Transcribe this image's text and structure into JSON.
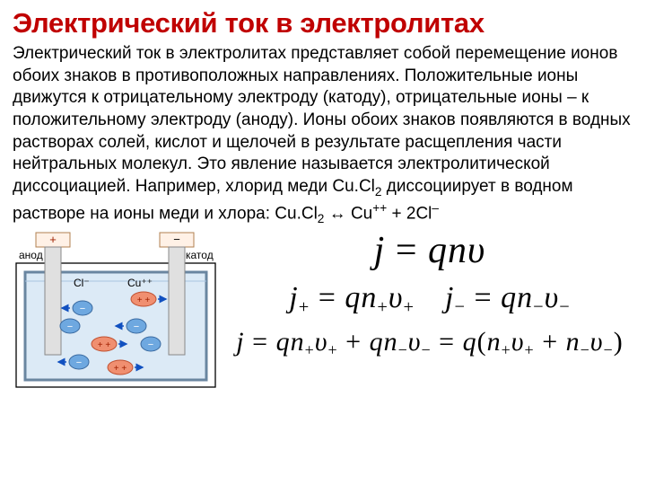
{
  "title": "Электрический ток в электролитах",
  "body_html": "Электрический ток в электролитах представляет собой перемещение ионов обоих знаков в противоположных направлениях. Положительные ионы движутся к отрицательному электроду (катоду), отрицательные ионы – к положительному электроду (аноду). Ионы обоих знаков появляются в водных растворах солей, кислот и щелочей в результате расщепления части нейтральных молекул. Это явление называется электролитической диссоциацией. Например, хлорид меди Cu.Cl<span class=\"sub\">2</span> диссоциирует в водном растворе на ионы меди и хлора: Cu.Cl<span class=\"sub\">2</span> ↔ Cu<span class=\"sup\">++</span> + 2Cl<span class=\"sup\">–</span>",
  "diagram": {
    "anode_sign": "+",
    "cathode_sign": "−",
    "anode_label": "анод",
    "cathode_label": "катод",
    "cl_label": "Cl⁻",
    "cu_label": "Cu⁺⁺",
    "colors": {
      "outer_border": "#000000",
      "plate_fill": "#fff1e6",
      "plate_stroke": "#b08050",
      "liquid": "#dceaf6",
      "vessel_stroke": "#6a86a0",
      "electrode_fill": "#e0e0e0",
      "electrode_stroke": "#888888",
      "neg_fill": "#6ea8e0",
      "pos_fill": "#f08f70",
      "arrow": "#1050c0",
      "neg_text": "#ffffff",
      "pos_text": "#a02000"
    }
  },
  "equations": {
    "main": "j = qnυ",
    "jplus": "j₊ = qn₊υ₊",
    "jminus": "j₋ = qn₋υ₋",
    "sum": "j = qn₊υ₊ + qn₋υ₋ = q(n₊υ₊ + n₋υ₋)"
  },
  "colors": {
    "title": "#c00000",
    "text": "#000000",
    "bg": "#ffffff"
  }
}
